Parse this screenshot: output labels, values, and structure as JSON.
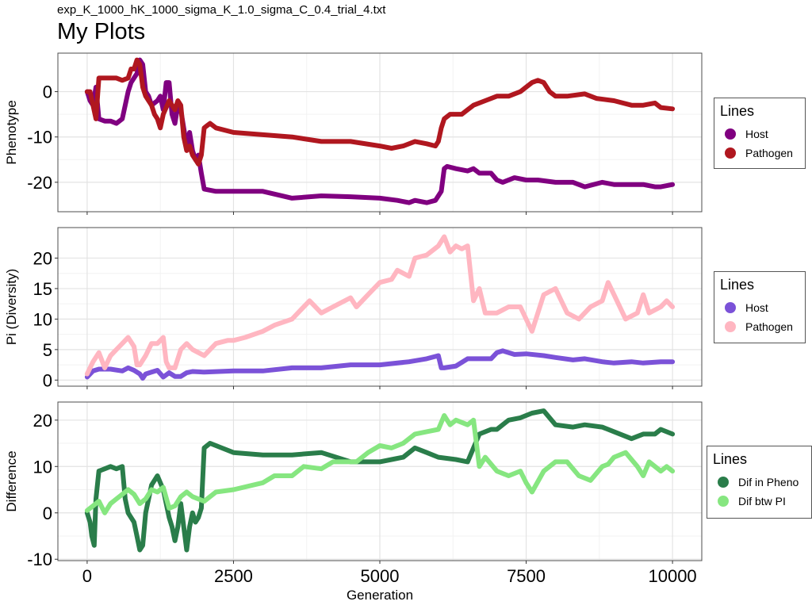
{
  "header": {
    "subtitle": "exp_K_1000_hK_1000_sigma_K_1.0_sigma_C_0.4_trial_4.txt",
    "title": "My Plots"
  },
  "chart_data": [
    {
      "type": "line",
      "ylabel": "Phenotype",
      "xlabel": "",
      "xlim": [
        -500,
        10500
      ],
      "ylim": [
        -26.5,
        8.5
      ],
      "xticks": [
        0,
        2500,
        5000,
        7500,
        10000
      ],
      "yticks": [
        0,
        -10,
        -20
      ],
      "ytick_labels": [
        "0",
        "-10",
        "-20"
      ],
      "show_x_tick_labels": false,
      "grid": true,
      "legend": {
        "title": "Lines",
        "placement": "right",
        "entries": [
          {
            "label": "Host",
            "color": "#800080"
          },
          {
            "label": "Pathogen",
            "color": "#b0171f"
          }
        ]
      },
      "series": [
        {
          "name": "Host",
          "color": "#800080",
          "x": [
            0,
            50,
            100,
            150,
            200,
            300,
            400,
            500,
            600,
            650,
            700,
            750,
            800,
            850,
            900,
            950,
            1000,
            1050,
            1100,
            1200,
            1250,
            1300,
            1350,
            1400,
            1450,
            1500,
            1550,
            1600,
            1650,
            1700,
            1750,
            1800,
            1850,
            1900,
            1950,
            2000,
            2200,
            2500,
            3000,
            3500,
            4000,
            4500,
            5000,
            5300,
            5500,
            5600,
            5800,
            5950,
            6050,
            6100,
            6150,
            6300,
            6500,
            6600,
            6700,
            6900,
            7000,
            7100,
            7300,
            7500,
            7700,
            8000,
            8300,
            8500,
            8800,
            9000,
            9300,
            9500,
            9700,
            9800,
            10000
          ],
          "y": [
            0,
            -2,
            -3,
            1,
            -6,
            -6.5,
            -6.5,
            -7,
            -6,
            -3,
            0,
            2,
            3,
            4,
            7,
            6,
            0,
            -1,
            -3,
            -2,
            -1,
            -4,
            2,
            2,
            -5,
            -7,
            -3,
            -4,
            -8,
            -12,
            -9,
            -13,
            -15,
            -14,
            -18,
            -21.5,
            -22,
            -22,
            -22,
            -23.5,
            -23,
            -23.2,
            -23.5,
            -24,
            -24.5,
            -24,
            -24.5,
            -24,
            -22,
            -17,
            -16.5,
            -17,
            -17.5,
            -17,
            -18,
            -18,
            -19.5,
            -20,
            -19,
            -19.5,
            -19.5,
            -20,
            -20,
            -21,
            -20,
            -20.5,
            -20.5,
            -20.5,
            -21,
            -21,
            -20.5
          ]
        },
        {
          "name": "Pathogen",
          "color": "#b0171f",
          "x": [
            0,
            50,
            100,
            150,
            200,
            250,
            300,
            400,
            500,
            600,
            700,
            750,
            800,
            850,
            900,
            950,
            1000,
            1050,
            1100,
            1150,
            1200,
            1250,
            1300,
            1400,
            1500,
            1550,
            1600,
            1650,
            1700,
            1750,
            1800,
            1850,
            1900,
            1950,
            2000,
            2050,
            2100,
            2200,
            2500,
            3000,
            3500,
            4000,
            4500,
            5000,
            5200,
            5400,
            5600,
            5800,
            5950,
            6000,
            6050,
            6100,
            6200,
            6400,
            6500,
            6600,
            6800,
            7000,
            7200,
            7400,
            7500,
            7600,
            7700,
            7800,
            7900,
            8000,
            8200,
            8500,
            8700,
            9000,
            9300,
            9500,
            9700,
            9800,
            10000
          ],
          "y": [
            0,
            0,
            -3,
            -6,
            3,
            3,
            3,
            3,
            3,
            2.5,
            3,
            5,
            5,
            7,
            6,
            1,
            -1,
            -2,
            -3,
            -5,
            -6,
            -8,
            -5,
            -2,
            -4,
            -2,
            -3,
            -10,
            -13,
            -12,
            -14,
            -15,
            -16,
            -14,
            -8,
            -7.5,
            -7,
            -8,
            -9,
            -9.5,
            -10,
            -11,
            -11,
            -12,
            -12.5,
            -12,
            -11,
            -11.5,
            -12,
            -11,
            -8,
            -6,
            -5,
            -5,
            -4,
            -3,
            -2,
            -1,
            -1,
            0,
            1,
            2,
            2.5,
            2,
            0,
            -1,
            -1,
            -0.5,
            -1.5,
            -2,
            -3,
            -3,
            -2.5,
            -3.5,
            -3.8
          ]
        }
      ]
    },
    {
      "type": "line",
      "ylabel": "Pi (Diversity)",
      "xlabel": "",
      "xlim": [
        -500,
        10500
      ],
      "ylim": [
        -1,
        25
      ],
      "xticks": [
        0,
        2500,
        5000,
        7500,
        10000
      ],
      "yticks": [
        0,
        5,
        10,
        15,
        20
      ],
      "ytick_labels": [
        "0",
        "5",
        "10",
        "15",
        "20"
      ],
      "show_x_tick_labels": false,
      "grid": true,
      "legend": {
        "title": "Lines",
        "placement": "right",
        "entries": [
          {
            "label": "Host",
            "color": "#7b52d8"
          },
          {
            "label": "Pathogen",
            "color": "#ffb6c1"
          }
        ]
      },
      "series": [
        {
          "name": "Host",
          "color": "#7b52d8",
          "x": [
            0,
            100,
            200,
            400,
            600,
            700,
            800,
            900,
            950,
            1000,
            1100,
            1200,
            1300,
            1400,
            1500,
            1600,
            1700,
            1800,
            2000,
            2500,
            3000,
            3500,
            4000,
            4500,
            5000,
            5500,
            5800,
            6000,
            6050,
            6100,
            6300,
            6500,
            6700,
            6900,
            7000,
            7100,
            7300,
            7500,
            7800,
            8000,
            8300,
            8500,
            8800,
            9000,
            9300,
            9500,
            9800,
            10000
          ],
          "y": [
            0.5,
            1.5,
            1.8,
            1.8,
            1.5,
            2,
            1.6,
            1,
            0.3,
            1,
            1.3,
            1.6,
            0.5,
            1.2,
            0.6,
            0.6,
            1.2,
            1.4,
            1.3,
            1.5,
            1.5,
            2,
            2,
            2.5,
            2.5,
            3,
            3.5,
            4,
            2,
            2,
            2.3,
            3.5,
            3.5,
            3.5,
            4.5,
            4.8,
            4.2,
            4.3,
            4,
            3.7,
            3.3,
            3.5,
            3,
            2.8,
            3,
            2.8,
            3,
            3
          ]
        },
        {
          "name": "Pathogen",
          "color": "#ffb6c1",
          "x": [
            0,
            100,
            200,
            300,
            400,
            500,
            600,
            700,
            800,
            850,
            900,
            1000,
            1100,
            1200,
            1300,
            1350,
            1400,
            1500,
            1600,
            1700,
            1800,
            2000,
            2200,
            2400,
            2500,
            2700,
            3000,
            3200,
            3500,
            3700,
            3800,
            4000,
            4200,
            4500,
            4600,
            4800,
            5000,
            5200,
            5300,
            5500,
            5600,
            5800,
            6000,
            6100,
            6200,
            6300,
            6400,
            6500,
            6600,
            6700,
            6800,
            7000,
            7200,
            7400,
            7500,
            7600,
            7800,
            8000,
            8200,
            8400,
            8600,
            8800,
            8900,
            9000,
            9200,
            9400,
            9500,
            9600,
            9800,
            9900,
            10000
          ],
          "y": [
            1,
            3,
            4.5,
            2,
            4,
            5,
            6,
            7,
            5.5,
            2.5,
            2.5,
            4,
            6,
            6,
            7,
            3,
            2,
            2,
            5,
            6,
            5,
            4,
            6,
            6.5,
            6.5,
            7,
            8,
            9,
            10,
            12,
            13,
            11,
            12,
            13.5,
            12,
            14,
            16,
            16.5,
            18,
            17,
            20,
            20.5,
            22,
            23.5,
            21,
            22,
            21.5,
            22,
            13,
            15,
            11,
            11,
            12,
            12,
            10,
            8,
            14,
            15,
            11,
            10,
            12,
            13,
            16,
            14,
            10,
            11,
            14,
            11,
            12,
            13,
            12
          ]
        }
      ]
    },
    {
      "type": "line",
      "ylabel": "Difference",
      "xlabel": "Generation",
      "xlim": [
        -500,
        10500
      ],
      "ylim": [
        -10.3,
        23.9
      ],
      "xticks": [
        0,
        2500,
        5000,
        7500,
        10000
      ],
      "xtick_labels": [
        "0",
        "2500",
        "5000",
        "7500",
        "10000"
      ],
      "yticks": [
        -10,
        0,
        10,
        20
      ],
      "ytick_labels": [
        "-10",
        "0",
        "10",
        "20"
      ],
      "show_x_tick_labels": true,
      "grid": true,
      "legend": {
        "title": "Lines",
        "placement": "right",
        "entries": [
          {
            "label": "Dif in Pheno",
            "color": "#2a7d4a"
          },
          {
            "label": "Dif btw PI",
            "color": "#86e680"
          }
        ]
      },
      "series": [
        {
          "name": "Dif in Pheno",
          "color": "#2a7d4a",
          "x": [
            0,
            50,
            80,
            120,
            150,
            200,
            300,
            400,
            500,
            600,
            650,
            700,
            800,
            850,
            900,
            950,
            1000,
            1050,
            1100,
            1200,
            1300,
            1400,
            1450,
            1500,
            1550,
            1600,
            1650,
            1700,
            1750,
            1800,
            1850,
            1900,
            1950,
            2000,
            2100,
            2300,
            2500,
            3000,
            3500,
            4000,
            4500,
            5000,
            5200,
            5400,
            5600,
            5800,
            6000,
            6300,
            6500,
            6600,
            6700,
            6900,
            7000,
            7200,
            7400,
            7600,
            7800,
            8000,
            8300,
            8500,
            8800,
            9000,
            9300,
            9500,
            9700,
            9800,
            10000
          ],
          "y": [
            0,
            -2,
            -5,
            -7,
            3,
            9,
            9.5,
            10,
            9.5,
            10,
            3,
            0,
            -2,
            -5,
            -8,
            -7,
            0,
            3,
            6,
            8,
            5,
            -1,
            -3,
            -6,
            -3,
            2,
            -3,
            -8,
            -3,
            0,
            -2,
            -1,
            1,
            14,
            15,
            14,
            13,
            12.5,
            12.5,
            13,
            11,
            11,
            11.5,
            12,
            14,
            13,
            12,
            11.5,
            11,
            14,
            17,
            18,
            18,
            20,
            20.5,
            21.5,
            22,
            19,
            18.5,
            19,
            18.5,
            17.5,
            16,
            17,
            17,
            18,
            17
          ]
        },
        {
          "name": "Dif btw PI",
          "color": "#86e680",
          "x": [
            0,
            100,
            200,
            300,
            400,
            500,
            600,
            700,
            800,
            900,
            1000,
            1100,
            1200,
            1300,
            1400,
            1500,
            1600,
            1700,
            1800,
            2000,
            2200,
            2500,
            3000,
            3200,
            3500,
            3700,
            4000,
            4200,
            4500,
            4600,
            4800,
            5000,
            5200,
            5400,
            5600,
            5800,
            6000,
            6100,
            6200,
            6300,
            6500,
            6600,
            6700,
            6800,
            7000,
            7200,
            7400,
            7500,
            7600,
            7800,
            8000,
            8200,
            8400,
            8600,
            8800,
            8900,
            9000,
            9200,
            9400,
            9500,
            9600,
            9800,
            9900,
            10000
          ],
          "y": [
            0.5,
            1.5,
            2.5,
            0,
            2,
            3,
            4,
            5,
            4,
            2,
            3,
            5,
            4.5,
            5.5,
            1,
            1.5,
            3.5,
            4.5,
            3.5,
            2.5,
            4.5,
            5,
            6.5,
            8,
            8,
            10,
            9.5,
            11,
            11,
            11,
            13,
            14.5,
            14,
            15,
            17,
            17.5,
            18,
            21,
            19,
            20,
            19,
            20,
            10,
            12,
            9,
            8,
            9,
            6.5,
            4.5,
            9,
            11,
            11,
            8,
            7,
            10,
            10.5,
            12,
            13,
            10,
            8,
            11,
            9,
            10,
            9
          ]
        }
      ]
    }
  ]
}
